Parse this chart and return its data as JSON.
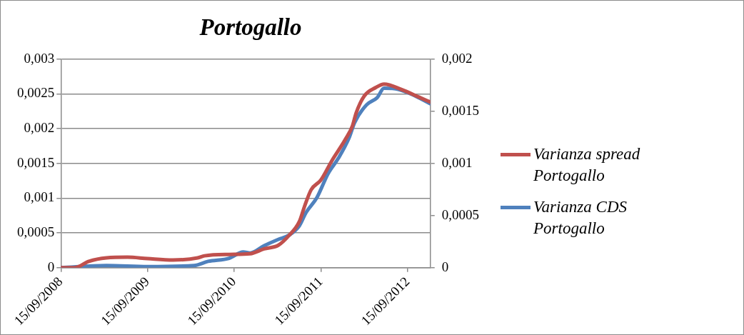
{
  "chart_data": {
    "type": "line",
    "title": "Portogallo",
    "xlim": [
      "2008-09-15",
      "2012-12-19"
    ],
    "xticks": [
      {
        "value": "2008-09-15",
        "label": "15/09/2008"
      },
      {
        "value": "2009-09-15",
        "label": "15/09/2009"
      },
      {
        "value": "2010-09-15",
        "label": "15/09/2010"
      },
      {
        "value": "2011-09-15",
        "label": "15/09/2011"
      },
      {
        "value": "2012-09-15",
        "label": "15/09/2012"
      }
    ],
    "ylim": [
      0,
      0.003
    ],
    "yticks": [
      {
        "value": 0,
        "label": "0"
      },
      {
        "value": 0.0005,
        "label": "0,0005"
      },
      {
        "value": 0.001,
        "label": "0,001"
      },
      {
        "value": 0.0015,
        "label": "0,0015"
      },
      {
        "value": 0.002,
        "label": "0,002"
      },
      {
        "value": 0.0025,
        "label": "0,0025"
      },
      {
        "value": 0.003,
        "label": "0,003"
      }
    ],
    "y2lim": [
      0,
      0.002
    ],
    "y2ticks": [
      {
        "value": 0,
        "label": "0"
      },
      {
        "value": 0.0005,
        "label": "0,0005"
      },
      {
        "value": 0.001,
        "label": "0,001"
      },
      {
        "value": 0.0015,
        "label": "0,0015"
      },
      {
        "value": 0.002,
        "label": "0,002"
      }
    ],
    "grid": "y",
    "legend": "right",
    "marker": "none",
    "line_style": "solid",
    "series": [
      {
        "name": "Varianza spread Portogallo",
        "color": "#c0504d",
        "x": [
          "2008-09-15",
          "2008-11-13",
          "2009-01-11",
          "2009-03-26",
          "2009-06-22",
          "2009-09-15",
          "2009-12-31",
          "2010-04-14",
          "2010-05-13",
          "2010-08-25",
          "2010-11-21",
          "2011-01-19",
          "2011-03-19",
          "2011-05-03",
          "2011-06-16",
          "2011-07-09",
          "2011-08-05",
          "2011-09-15",
          "2011-10-30",
          "2011-12-28",
          "2012-01-26",
          "2012-02-10",
          "2012-03-16",
          "2012-05-03",
          "2012-06-07",
          "2012-08-20",
          "2012-11-02",
          "2012-12-19"
        ],
        "values": [
          0,
          0,
          9e-05,
          0.00014,
          0.00015,
          0.00013,
          0.00011,
          0.00014,
          0.00017,
          0.00019,
          0.0002,
          0.00027,
          0.00032,
          0.00046,
          0.00066,
          0.00089,
          0.00112,
          0.00126,
          0.00153,
          0.00185,
          0.00204,
          0.00222,
          0.00247,
          0.00259,
          0.00264,
          0.00256,
          0.00245,
          0.00238
        ]
      },
      {
        "name": "Varianza CDS Portogallo",
        "color": "#4f81bd",
        "axis": "y2",
        "x": [
          "2008-09-15",
          "2009-03-26",
          "2009-09-15",
          "2010-03-30",
          "2010-05-28",
          "2010-08-25",
          "2010-10-23",
          "2010-11-21",
          "2011-01-19",
          "2011-03-19",
          "2011-05-03",
          "2011-06-16",
          "2011-07-15",
          "2011-08-29",
          "2011-10-15",
          "2011-11-28",
          "2012-01-11",
          "2012-02-04",
          "2012-03-25",
          "2012-05-09",
          "2012-06-07",
          "2012-08-05",
          "2012-10-03",
          "2012-12-19"
        ],
        "values": [
          0,
          2e-05,
          1e-05,
          2e-05,
          6e-05,
          9e-05,
          0.00015,
          0.00014,
          0.00021,
          0.00027,
          0.00031,
          0.0004,
          0.00053,
          0.00067,
          0.0009,
          0.00105,
          0.00124,
          0.00139,
          0.00156,
          0.00163,
          0.00172,
          0.00171,
          0.00166,
          0.00157
        ]
      }
    ]
  }
}
